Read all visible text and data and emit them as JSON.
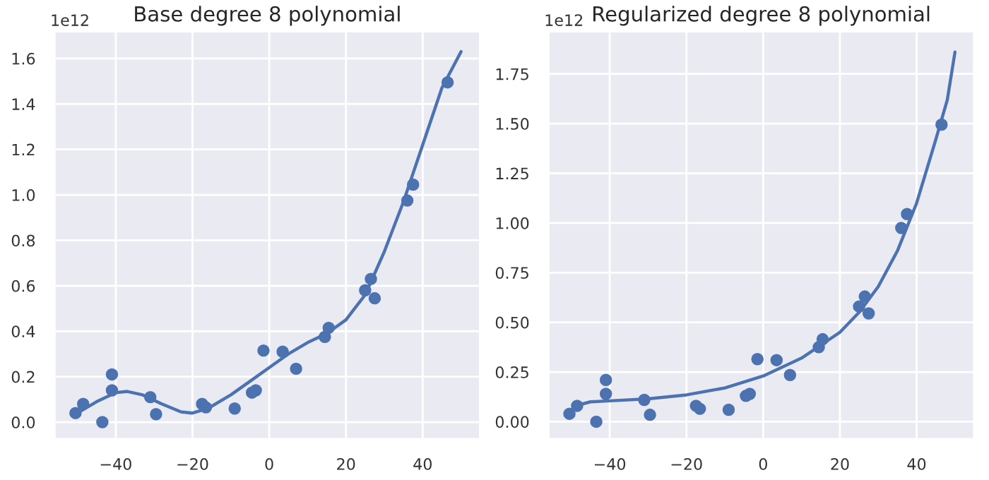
{
  "chart_data": [
    {
      "type": "scatter",
      "title": "Base degree 8 polynomial",
      "annotations": [
        "1e12"
      ],
      "grid": true,
      "xlim": [
        -56,
        55
      ],
      "xticks": [
        -40,
        -20,
        0,
        20,
        40
      ],
      "ylim": [
        -0.075,
        1.72
      ],
      "yticks": [
        {
          "value": 0.0,
          "label": "0.0"
        },
        0.2,
        0.4,
        0.6,
        0.8,
        {
          "value": 1.0,
          "label": "1.0"
        },
        1.2,
        1.4,
        1.6
      ],
      "series": [
        {
          "marker": "circle",
          "color": "#4c72b0",
          "x": [
            -50.5,
            -48.5,
            -43.5,
            -41,
            -41,
            -31,
            -29.5,
            -17.5,
            -16.5,
            -9,
            -4.5,
            -3.5,
            -1.5,
            3.5,
            7,
            14.5,
            15.5,
            25,
            26.5,
            27.5,
            36,
            37.5,
            46.5
          ],
          "values": [
            0.04,
            0.08,
            0.0,
            0.21,
            0.14,
            0.11,
            0.035,
            0.08,
            0.065,
            0.06,
            0.13,
            0.14,
            0.315,
            0.31,
            0.235,
            0.375,
            0.415,
            0.58,
            0.63,
            0.545,
            0.975,
            1.045,
            1.495
          ]
        },
        {
          "type": "line",
          "color": "#4c72b0",
          "x": [
            -50,
            -45,
            -40,
            -37,
            -33,
            -28,
            -23,
            -20,
            -16,
            -10,
            -5,
            0,
            5,
            10,
            15,
            20,
            25,
            30,
            35,
            40,
            45,
            50
          ],
          "values": [
            0.04,
            0.09,
            0.13,
            0.135,
            0.12,
            0.08,
            0.045,
            0.04,
            0.06,
            0.12,
            0.18,
            0.24,
            0.3,
            0.35,
            0.39,
            0.45,
            0.56,
            0.75,
            0.97,
            1.22,
            1.47,
            1.63
          ]
        }
      ]
    },
    {
      "type": "scatter",
      "title": "Regularized degree 8 polynomial",
      "annotations": [
        "1e12"
      ],
      "grid": true,
      "xlim": [
        -56,
        55
      ],
      "xticks": [
        -40,
        -20,
        0,
        20,
        40
      ],
      "ylim": [
        -0.088,
        1.965
      ],
      "yticks": [
        {
          "value": 0.0,
          "label": "0.00"
        },
        {
          "value": 0.25,
          "label": "0.25"
        },
        {
          "value": 0.5,
          "label": "0.50"
        },
        {
          "value": 0.75,
          "label": "0.75"
        },
        {
          "value": 1.0,
          "label": "1.00"
        },
        {
          "value": 1.25,
          "label": "1.25"
        },
        {
          "value": 1.5,
          "label": "1.50"
        },
        {
          "value": 1.75,
          "label": "1.75"
        }
      ],
      "series": [
        {
          "marker": "circle",
          "color": "#4c72b0",
          "x": [
            -50.5,
            -48.5,
            -43.5,
            -41,
            -41,
            -31,
            -29.5,
            -17.5,
            -16.5,
            -9,
            -4.5,
            -3.5,
            -1.5,
            3.5,
            7,
            14.5,
            15.5,
            25,
            26.5,
            27.5,
            36,
            37.5,
            46.5
          ],
          "values": [
            0.04,
            0.08,
            0.0,
            0.21,
            0.14,
            0.11,
            0.035,
            0.08,
            0.065,
            0.06,
            0.13,
            0.14,
            0.315,
            0.31,
            0.235,
            0.375,
            0.415,
            0.58,
            0.63,
            0.545,
            0.975,
            1.045,
            1.495
          ]
        },
        {
          "type": "line",
          "color": "#4c72b0",
          "x": [
            -50,
            -48,
            -45,
            -40,
            -30,
            -20,
            -10,
            0,
            10,
            20,
            25,
            30,
            35,
            40,
            45,
            48,
            50
          ],
          "values": [
            0.06,
            0.085,
            0.1,
            0.105,
            0.115,
            0.135,
            0.17,
            0.23,
            0.32,
            0.45,
            0.55,
            0.68,
            0.86,
            1.1,
            1.42,
            1.62,
            1.86
          ]
        }
      ]
    }
  ]
}
